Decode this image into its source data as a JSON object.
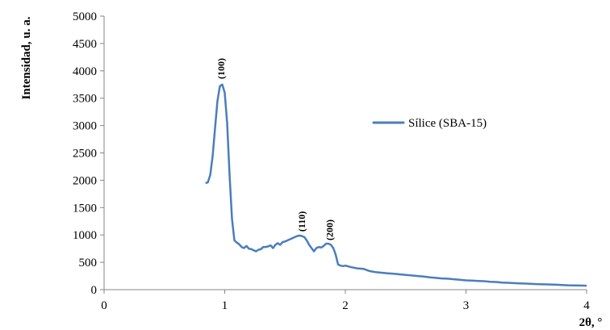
{
  "chart_data": {
    "type": "line",
    "title": "",
    "xlabel": "2θ, °",
    "ylabel": "Intensidad, u. a.",
    "xlim": [
      0,
      4
    ],
    "ylim": [
      0,
      5000
    ],
    "xticks": [
      "0",
      "1",
      "2",
      "3",
      "4"
    ],
    "yticks": [
      "0",
      "500",
      "1000",
      "1500",
      "2000",
      "2500",
      "3000",
      "3500",
      "4000",
      "4500",
      "5000"
    ],
    "grid": false,
    "legend": {
      "placement": "right",
      "entries": [
        "Sílice (SBA-15)"
      ]
    },
    "series_color": "#4a7ebb",
    "annotations": [
      {
        "text": "(100)",
        "x": 0.97,
        "y": 3850
      },
      {
        "text": "(110)",
        "x": 1.64,
        "y": 1060
      },
      {
        "text": "(200)",
        "x": 1.87,
        "y": 900
      }
    ],
    "series": [
      {
        "name": "Sílice (SBA-15)",
        "x": [
          0.84,
          0.86,
          0.88,
          0.9,
          0.92,
          0.94,
          0.96,
          0.98,
          1.0,
          1.02,
          1.04,
          1.06,
          1.08,
          1.1,
          1.12,
          1.14,
          1.16,
          1.18,
          1.2,
          1.22,
          1.24,
          1.26,
          1.28,
          1.3,
          1.32,
          1.34,
          1.36,
          1.38,
          1.4,
          1.42,
          1.44,
          1.46,
          1.48,
          1.5,
          1.52,
          1.54,
          1.56,
          1.58,
          1.6,
          1.62,
          1.64,
          1.66,
          1.68,
          1.7,
          1.72,
          1.74,
          1.76,
          1.78,
          1.8,
          1.82,
          1.84,
          1.86,
          1.88,
          1.9,
          1.92,
          1.94,
          1.96,
          1.98,
          2.0,
          2.05,
          2.1,
          2.15,
          2.2,
          2.25,
          2.3,
          2.35,
          2.4,
          2.45,
          2.5,
          2.55,
          2.6,
          2.65,
          2.7,
          2.75,
          2.8,
          2.85,
          2.9,
          2.95,
          3.0,
          3.05,
          3.1,
          3.15,
          3.2,
          3.25,
          3.3,
          3.35,
          3.4,
          3.45,
          3.5,
          3.55,
          3.6,
          3.65,
          3.7,
          3.75,
          3.8,
          3.85,
          3.9,
          3.95,
          4.0
        ],
        "y": [
          1950,
          1960,
          2100,
          2450,
          2950,
          3450,
          3720,
          3750,
          3600,
          3050,
          2100,
          1300,
          900,
          860,
          830,
          780,
          760,
          800,
          750,
          740,
          720,
          700,
          730,
          740,
          780,
          780,
          790,
          810,
          760,
          820,
          850,
          820,
          870,
          880,
          900,
          920,
          940,
          960,
          980,
          990,
          980,
          960,
          900,
          820,
          760,
          700,
          760,
          780,
          770,
          800,
          840,
          840,
          820,
          760,
          640,
          460,
          440,
          430,
          440,
          410,
          390,
          380,
          340,
          320,
          310,
          300,
          290,
          280,
          270,
          260,
          250,
          240,
          225,
          215,
          205,
          200,
          190,
          180,
          170,
          165,
          160,
          155,
          145,
          140,
          130,
          125,
          120,
          115,
          110,
          105,
          100,
          98,
          95,
          90,
          85,
          80,
          78,
          75,
          72
        ]
      }
    ]
  }
}
